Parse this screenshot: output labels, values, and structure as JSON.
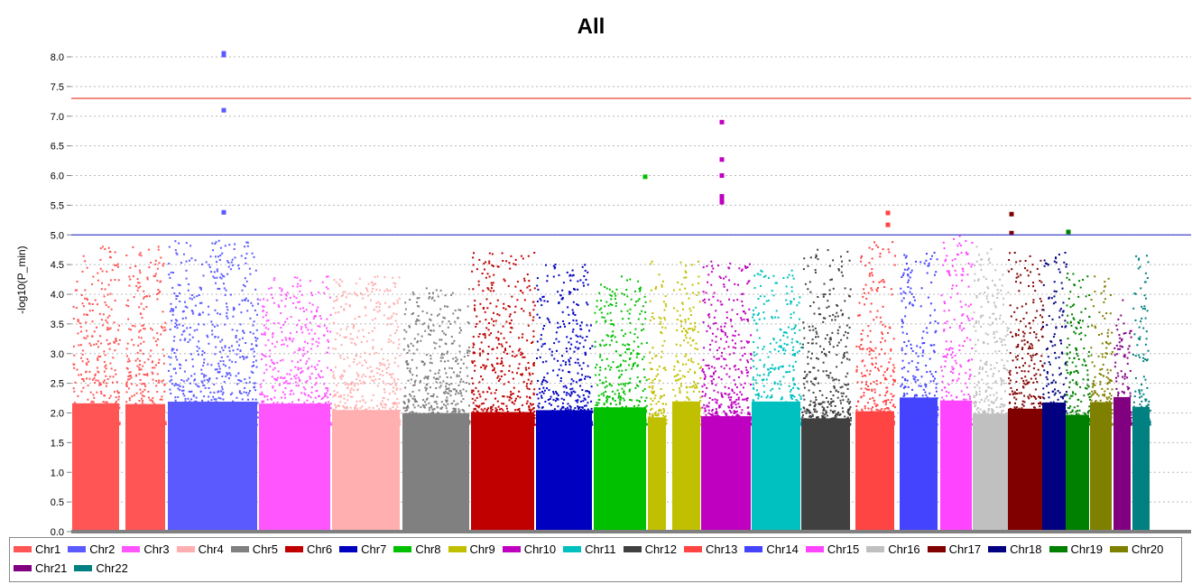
{
  "chart_data": {
    "type": "scatter",
    "title": "All",
    "ylabel": "-log10(P_min)",
    "xlabel": "",
    "ylim": [
      0,
      8.4
    ],
    "yticks": [
      "0.0",
      "0.5",
      "1.0",
      "1.5",
      "2.0",
      "2.5",
      "3.0",
      "3.5",
      "4.0",
      "4.5",
      "5.0",
      "5.5",
      "6.0",
      "6.5",
      "7.0",
      "7.5",
      "8.0"
    ],
    "grid": true,
    "legend_position": "bottom",
    "thresholds": [
      {
        "value": 7.3,
        "color": "#ee4433"
      },
      {
        "value": 5.0,
        "color": "#4444cc"
      }
    ],
    "series": [
      {
        "name": "Chr1",
        "color": "#ff5555",
        "peak": 4.8,
        "hits": []
      },
      {
        "name": "Chr2",
        "color": "#5a5aff",
        "peak": 4.9,
        "hits": [
          5.38,
          7.1,
          8.03,
          8.06
        ]
      },
      {
        "name": "Chr3",
        "color": "#ff55ff",
        "peak": 4.3,
        "hits": []
      },
      {
        "name": "Chr4",
        "color": "#ffafaf",
        "peak": 4.3,
        "hits": []
      },
      {
        "name": "Chr5",
        "color": "#808080",
        "peak": 4.1,
        "hits": []
      },
      {
        "name": "Chr6",
        "color": "#c00000",
        "peak": 4.7,
        "hits": []
      },
      {
        "name": "Chr7",
        "color": "#0000c0",
        "peak": 4.5,
        "hits": []
      },
      {
        "name": "Chr8",
        "color": "#00c000",
        "peak": 4.3,
        "hits": [
          5.98
        ]
      },
      {
        "name": "Chr9",
        "color": "#c0c000",
        "peak": 4.55,
        "hits": []
      },
      {
        "name": "Chr10",
        "color": "#c000c0",
        "peak": 4.55,
        "hits": [
          5.55,
          5.6,
          5.65,
          6.0,
          6.27,
          6.9
        ]
      },
      {
        "name": "Chr11",
        "color": "#00c0c0",
        "peak": 4.4,
        "hits": []
      },
      {
        "name": "Chr12",
        "color": "#404040",
        "peak": 4.75,
        "hits": []
      },
      {
        "name": "Chr13",
        "color": "#ff4444",
        "peak": 4.88,
        "hits": [
          5.17,
          5.37
        ]
      },
      {
        "name": "Chr14",
        "color": "#4444ff",
        "peak": 4.7,
        "hits": []
      },
      {
        "name": "Chr15",
        "color": "#ff44ff",
        "peak": 4.98,
        "hits": []
      },
      {
        "name": "Chr16",
        "color": "#c0c0c0",
        "peak": 4.8,
        "hits": []
      },
      {
        "name": "Chr17",
        "color": "#800000",
        "peak": 4.7,
        "hits": [
          5.03,
          5.35
        ]
      },
      {
        "name": "Chr18",
        "color": "#000080",
        "peak": 4.7,
        "hits": []
      },
      {
        "name": "Chr19",
        "color": "#008000",
        "peak": 4.35,
        "hits": [
          5.05
        ]
      },
      {
        "name": "Chr20",
        "color": "#808000",
        "peak": 4.3,
        "hits": []
      },
      {
        "name": "Chr21",
        "color": "#800080",
        "peak": 3.9,
        "hits": []
      },
      {
        "name": "Chr22",
        "color": "#008080",
        "peak": 4.65,
        "hits": []
      }
    ]
  }
}
